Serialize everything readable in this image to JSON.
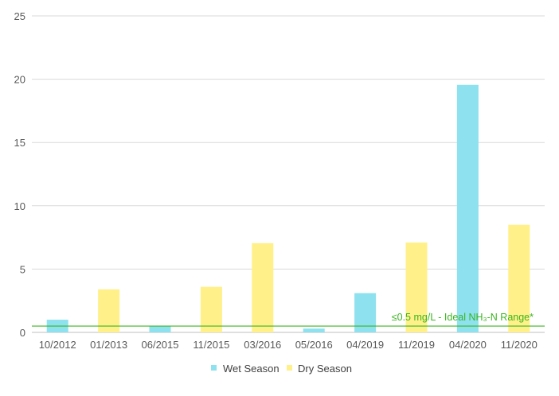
{
  "chart_data": {
    "type": "bar",
    "categories": [
      "10/2012",
      "01/2013",
      "06/2015",
      "11/2015",
      "03/2016",
      "05/2016",
      "04/2019",
      "11/2019",
      "04/2020",
      "11/2020"
    ],
    "values": [
      1.0,
      3.4,
      0.5,
      3.6,
      7.05,
      0.3,
      3.1,
      7.1,
      19.55,
      8.5
    ],
    "season": [
      "Wet Season",
      "Dry Season",
      "Wet Season",
      "Dry Season",
      "Dry Season",
      "Wet Season",
      "Wet Season",
      "Dry Season",
      "Wet Season",
      "Dry Season"
    ],
    "series": [
      {
        "name": "Wet Season",
        "color": "#8ee1ee"
      },
      {
        "name": "Dry Season",
        "color": "#fff08a"
      }
    ],
    "ylim": [
      0,
      25
    ],
    "yticks": [
      0,
      5,
      10,
      15,
      20,
      25
    ],
    "grid": true,
    "legend_position": "bottom",
    "threshold": {
      "value": 0.5,
      "label": "≤0.5 mg/L - Ideal NH₃-N Range*",
      "color": "#3cb521"
    },
    "title": "",
    "xlabel": "",
    "ylabel": ""
  }
}
